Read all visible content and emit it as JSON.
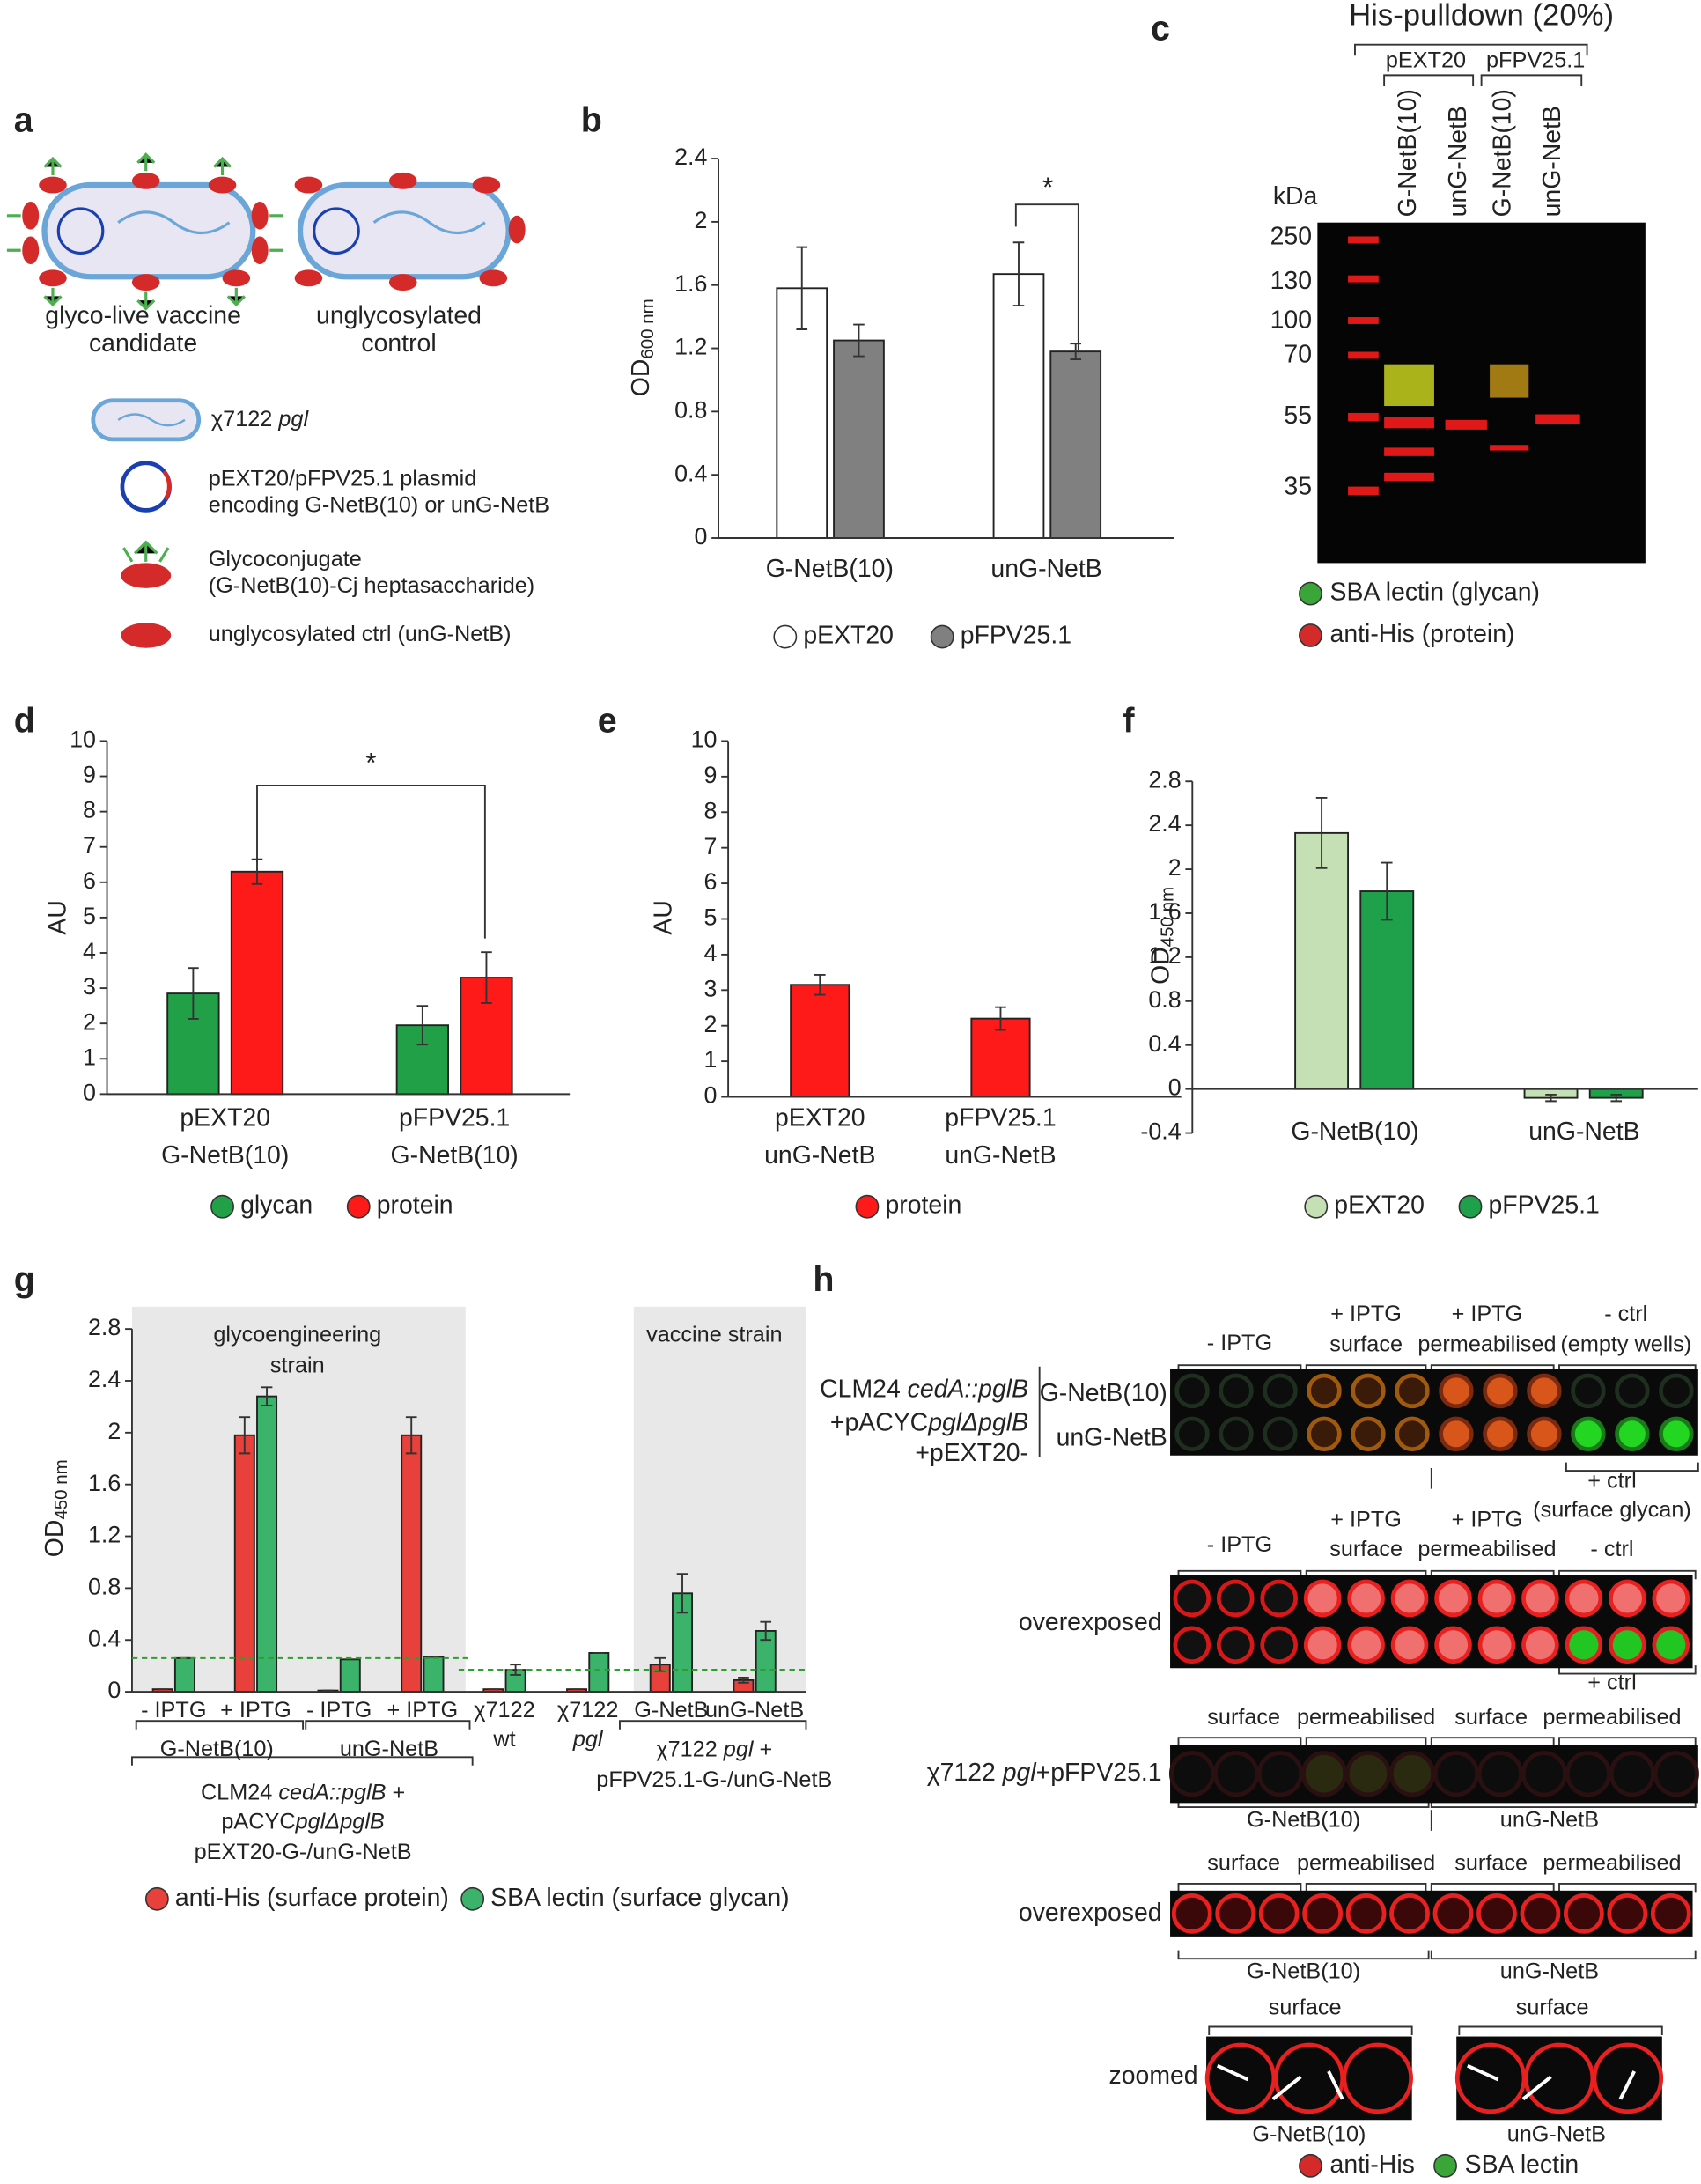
{
  "panel_labels": [
    "a",
    "b",
    "c",
    "d",
    "e",
    "f",
    "g",
    "h"
  ],
  "panel_a": {
    "cells": [
      [
        "glyco-live vaccine",
        "candidate"
      ],
      [
        "unglycosylated",
        "control"
      ]
    ],
    "legend": [
      [
        "χ7122 ",
        "pgl"
      ],
      [
        "pEXT20/pFPV25.1 plasmid",
        "encoding G-NetB(10) or unG-NetB"
      ],
      [
        "Glycoconjugate",
        "(G-NetB(10)-Cj heptasaccharide)"
      ],
      [
        "unglycosylated ctrl (unG-NetB)"
      ]
    ]
  },
  "panel_c": {
    "title": "His-pulldown (20%)",
    "plasmids": [
      "pEXT20",
      "pFPV25.1"
    ],
    "lanes": [
      "G-NetB(10)",
      "unG-NetB",
      "G-NetB(10)",
      "unG-NetB"
    ],
    "unit": "kDa",
    "markers": [
      250,
      130,
      100,
      70,
      55,
      35
    ],
    "legend": [
      "SBA lectin (glycan)",
      "anti-His (protein)"
    ],
    "legend_colors": [
      "#3aa63a",
      "#d42a2a"
    ]
  },
  "chart_data": [
    {
      "type": "bar",
      "y_label": "OD",
      "y_label_sub": "600 nm",
      "categories": [
        "G-NetB(10)",
        "unG-NetB"
      ],
      "series": [
        {
          "name": "pEXT20",
          "color": "#ffffff",
          "values": [
            1.58,
            1.67
          ],
          "errors": [
            0.26,
            0.2
          ]
        },
        {
          "name": "pFPV25.1",
          "color": "#808080",
          "values": [
            1.25,
            1.18
          ],
          "errors": [
            0.1,
            0.05
          ]
        }
      ],
      "ylim": [
        0,
        2.4
      ],
      "yticks": [
        0,
        0.4,
        0.8,
        1.2,
        1.6,
        2,
        2.4
      ],
      "annotations": [
        "*"
      ],
      "annotation_color": "#000000",
      "legend": "bottom"
    },
    {
      "type": "bar",
      "y_label": "AU",
      "categories": [
        [
          "pEXT20",
          "G-NetB(10)"
        ],
        [
          "pFPV25.1",
          "G-NetB(10)"
        ]
      ],
      "series": [
        {
          "name": "glycan",
          "color": "#22a048",
          "values": [
            2.85,
            1.95
          ],
          "errors": [
            0.72,
            0.55
          ]
        },
        {
          "name": "protein",
          "color": "#ff1a1a",
          "values": [
            6.3,
            3.3
          ],
          "errors": [
            0.35,
            0.72
          ]
        }
      ],
      "ylim": [
        0,
        10
      ],
      "yticks": [
        0,
        1,
        2,
        3,
        4,
        5,
        6,
        7,
        8,
        9,
        10
      ],
      "annotations": [
        "*"
      ],
      "annotation_color": "#c0392b",
      "legend": "bottom"
    },
    {
      "type": "bar",
      "y_label": "AU",
      "categories": [
        [
          "pEXT20",
          "unG-NetB"
        ],
        [
          "pFPV25.1",
          "unG-NetB"
        ]
      ],
      "series": [
        {
          "name": "protein",
          "color": "#ff1a1a",
          "values": [
            3.15,
            2.2
          ],
          "errors": [
            0.28,
            0.32
          ]
        }
      ],
      "ylim": [
        0,
        10
      ],
      "yticks": [
        0,
        1,
        2,
        3,
        4,
        5,
        6,
        7,
        8,
        9,
        10
      ],
      "legend": "bottom"
    },
    {
      "type": "bar",
      "y_label": "OD",
      "y_label_sub": "450 nm",
      "categories": [
        "G-NetB(10)",
        "unG-NetB"
      ],
      "series": [
        {
          "name": "pEXT20",
          "color": "#c5e0b5",
          "values": [
            2.33,
            -0.08
          ],
          "errors": [
            0.32,
            0.03
          ]
        },
        {
          "name": "pFPV25.1",
          "color": "#1fa04a",
          "values": [
            1.8,
            -0.08
          ],
          "errors": [
            0.26,
            0.03
          ]
        }
      ],
      "ylim": [
        -0.4,
        2.8
      ],
      "yticks": [
        -0.4,
        0,
        0.4,
        0.8,
        1.2,
        1.6,
        2,
        2.4,
        2.8
      ],
      "legend": "bottom"
    },
    {
      "type": "bar",
      "y_label": "OD",
      "y_label_sub": "450 nm",
      "categories": [
        [
          "- IPTG"
        ],
        [
          "+ IPTG"
        ],
        [
          "- IPTG"
        ],
        [
          "+ IPTG"
        ],
        [
          "χ7122",
          "wt"
        ],
        [
          "χ7122",
          "pgl"
        ],
        [
          "G-NetB"
        ],
        [
          "unG-NetB"
        ]
      ],
      "series": [
        {
          "name": "anti-His (surface protein)",
          "color": "#e8403a",
          "values": [
            0.02,
            1.98,
            0.01,
            1.98,
            0.02,
            0.02,
            0.21,
            0.09
          ],
          "errors": [
            0,
            0.14,
            0,
            0.14,
            0,
            0,
            0.05,
            0.02
          ]
        },
        {
          "name": "SBA lectin (surface glycan)",
          "color": "#3cb36a",
          "values": [
            0.26,
            2.28,
            0.25,
            0.27,
            0.17,
            0.3,
            0.76,
            0.47
          ],
          "errors": [
            0,
            0.07,
            0,
            0,
            0.04,
            0,
            0.15,
            0.07
          ]
        }
      ],
      "ylim": [
        0,
        2.8
      ],
      "yticks": [
        0,
        0.4,
        0.8,
        1.2,
        1.6,
        2,
        2.4,
        2.8
      ],
      "reference_lines": [
        0.26,
        0.17
      ],
      "reference_color": "#2ca02c",
      "region_labels": [
        [
          "glycoengineering",
          "strain"
        ],
        [
          "vaccine strain"
        ]
      ],
      "group_labels": [
        "G-NetB(10)",
        "unG-NetB"
      ],
      "bracket_labels": [
        [
          [
            "CLM24 ",
            "cedA::pglB",
            " +"
          ],
          [
            "pACYC",
            "pglΔpglB"
          ],
          [
            "pEXT20-G-/unG-NetB"
          ]
        ],
        [
          [
            "χ7122 ",
            "pgl",
            " +"
          ],
          [
            "pFPV25.1-G-/unG-NetB"
          ]
        ]
      ],
      "legend": "bottom"
    }
  ],
  "panel_h": {
    "plate1": {
      "columns": [
        [
          "- IPTG"
        ],
        [
          "+ IPTG",
          "surface"
        ],
        [
          "+ IPTG",
          "permeabilised"
        ],
        [
          "- ctrl",
          "(empty wells)"
        ]
      ],
      "strain": [
        [
          "CLM24 ",
          "cedA::pglB"
        ],
        [
          "+pACYC",
          "pglΔpglB"
        ],
        [
          "+pEXT20-"
        ]
      ],
      "rows": [
        "G-NetB(10)",
        "unG-NetB"
      ],
      "note": [
        "+ ctrl",
        "(surface glycan)"
      ]
    },
    "plate2": {
      "columns": [
        [
          "- IPTG"
        ],
        [
          "+ IPTG",
          "surface"
        ],
        [
          "+ IPTG",
          "permeabilised"
        ],
        [
          "- ctrl"
        ]
      ],
      "label": "overexposed",
      "note": "+ ctrl"
    },
    "plate3": {
      "columns": [
        "surface",
        "permeabilised",
        "surface",
        "permeabilised"
      ],
      "label": [
        "χ7122 ",
        "pgl",
        "+pFPV25.1"
      ],
      "groups": [
        "G-NetB(10)",
        "unG-NetB"
      ]
    },
    "plate4": {
      "columns": [
        "surface",
        "permeabilised",
        "surface",
        "permeabilised"
      ],
      "label": "overexposed",
      "groups": [
        "G-NetB(10)",
        "unG-NetB"
      ]
    },
    "plate5": {
      "columns": [
        "surface",
        "surface"
      ],
      "label": "zoomed",
      "groups": [
        "G-NetB(10)",
        "unG-NetB"
      ]
    },
    "legend": [
      "anti-His",
      "SBA lectin"
    ]
  }
}
